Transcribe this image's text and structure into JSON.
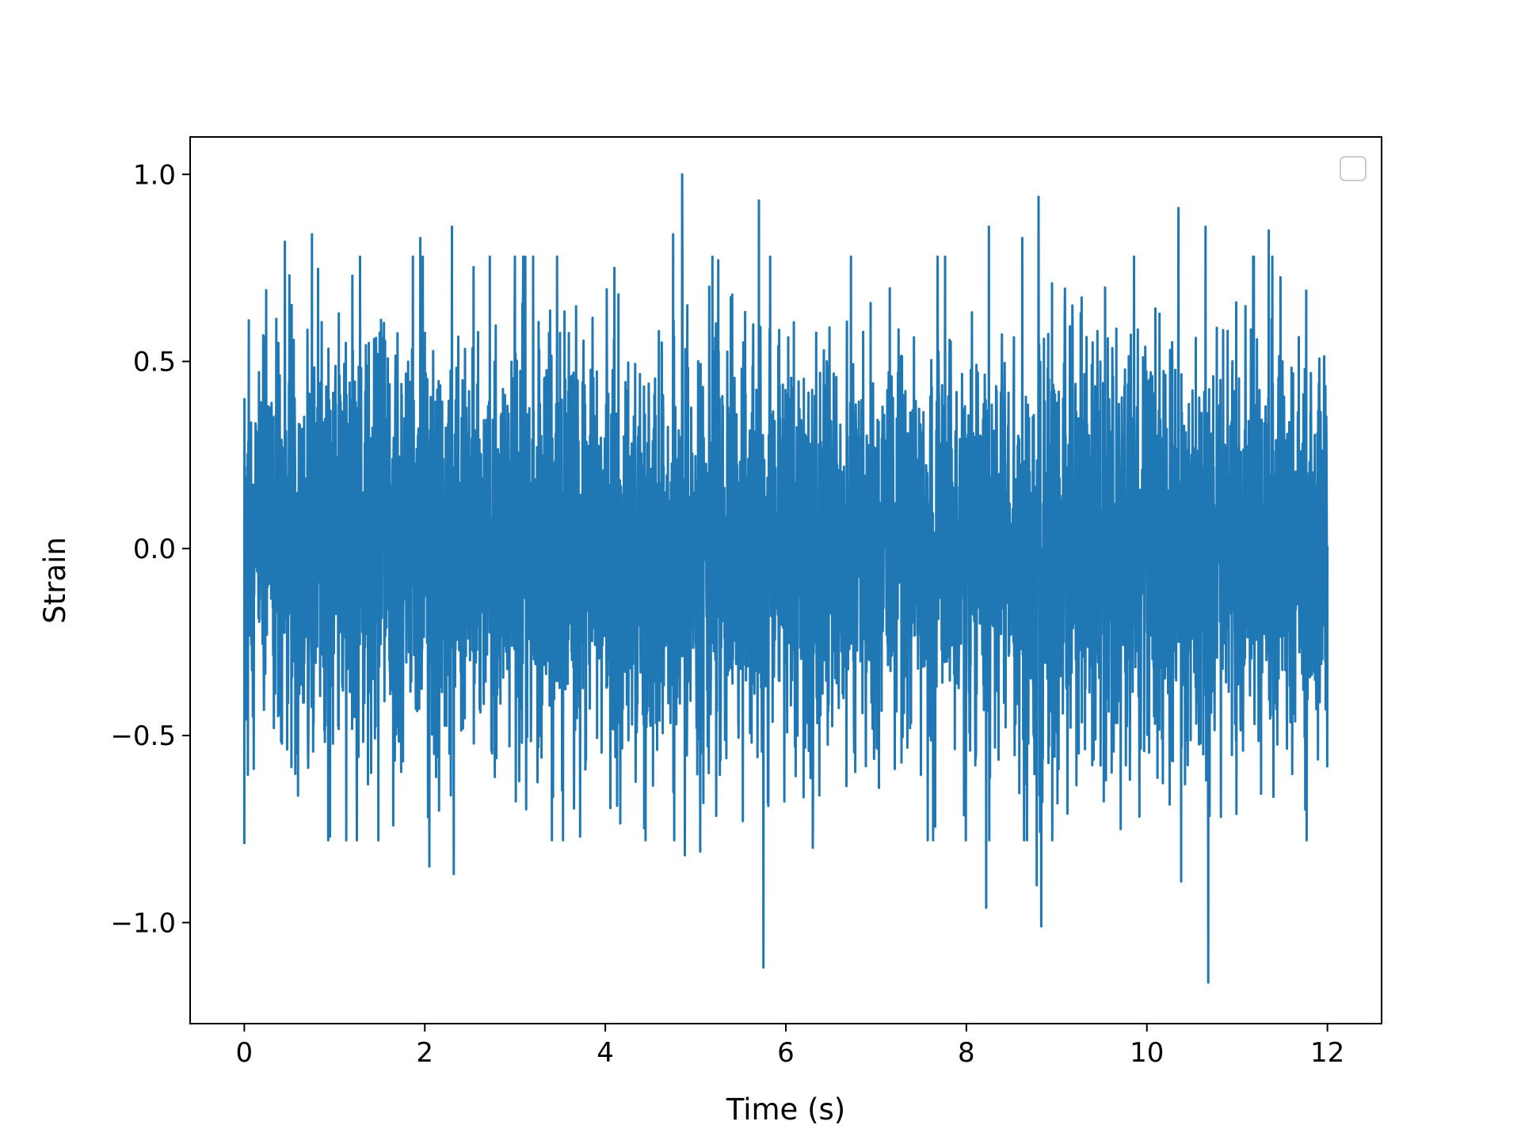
{
  "chart_data": {
    "type": "line",
    "title": "",
    "xlabel": "Time (s)",
    "ylabel": "Strain",
    "xlim": [
      -0.6,
      12.6
    ],
    "ylim": [
      -1.27,
      1.1
    ],
    "xticks": [
      0,
      2,
      4,
      6,
      8,
      10,
      12
    ],
    "xtick_labels": [
      "0",
      "2",
      "4",
      "6",
      "8",
      "10",
      "12"
    ],
    "yticks": [
      -1.0,
      -0.5,
      0.0,
      0.5,
      1.0
    ],
    "ytick_labels": [
      "−1.0",
      "−0.5",
      "0.0",
      "0.5",
      "1.0"
    ],
    "grid": false,
    "legend": {
      "placement": "top-right",
      "entries": []
    },
    "series": [
      {
        "color": "#1f77b4",
        "x_range": [
          0,
          12
        ],
        "noise_std": 0.28,
        "peaks": [
          [
            0.0,
            -0.79
          ],
          [
            0.05,
            0.61
          ],
          [
            0.45,
            0.82
          ],
          [
            0.75,
            0.84
          ],
          [
            0.95,
            -0.77
          ],
          [
            1.65,
            -0.74
          ],
          [
            1.95,
            0.83
          ],
          [
            2.05,
            -0.85
          ],
          [
            2.3,
            0.86
          ],
          [
            2.32,
            -0.87
          ],
          [
            2.72,
            0.78
          ],
          [
            3.72,
            -0.77
          ],
          [
            4.1,
            0.75
          ],
          [
            4.75,
            0.84
          ],
          [
            4.85,
            1.0
          ],
          [
            4.88,
            -0.82
          ],
          [
            5.05,
            -0.81
          ],
          [
            5.15,
            0.7
          ],
          [
            5.25,
            0.77
          ],
          [
            5.7,
            0.93
          ],
          [
            5.75,
            -1.12
          ],
          [
            5.8,
            -0.68
          ],
          [
            6.3,
            -0.8
          ],
          [
            8.22,
            -0.96
          ],
          [
            8.25,
            0.86
          ],
          [
            8.62,
            0.83
          ],
          [
            8.78,
            -0.9
          ],
          [
            8.8,
            0.94
          ],
          [
            8.83,
            -1.01
          ],
          [
            10.35,
            0.91
          ],
          [
            10.38,
            -0.89
          ],
          [
            10.65,
            0.86
          ],
          [
            10.68,
            -1.16
          ],
          [
            11.35,
            0.85
          ]
        ]
      }
    ]
  }
}
